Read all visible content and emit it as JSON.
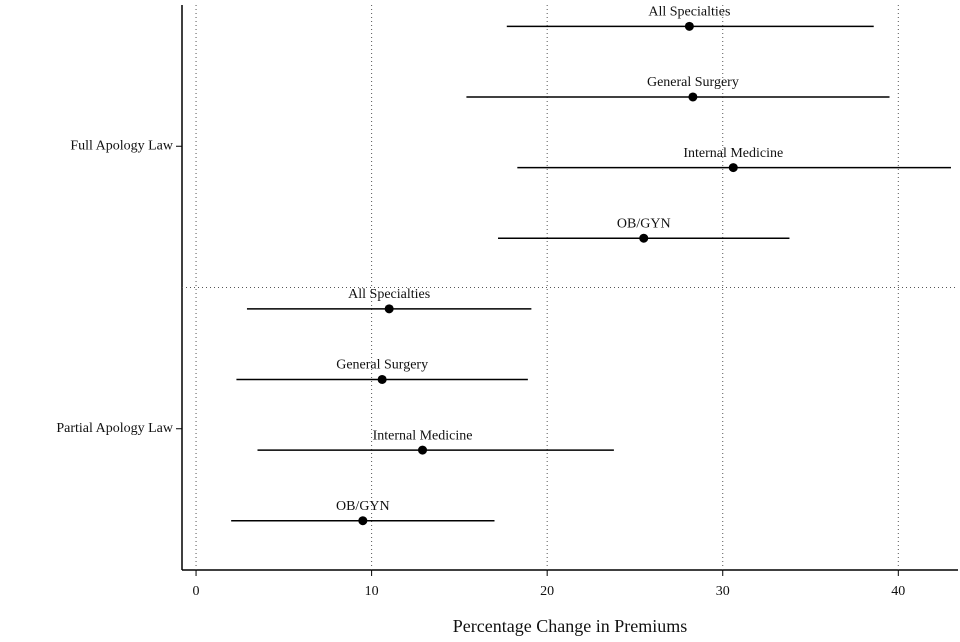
{
  "chart_data": {
    "type": "dot-interval",
    "x_label": "Percentage Change in Premiums",
    "xlim": [
      -0.8,
      43.4
    ],
    "xticks": [
      0,
      10,
      20,
      30,
      40
    ],
    "grid": true,
    "color": "#000000",
    "groups": [
      {
        "name": "Full Apology Law",
        "categories": [
          "All Specialties",
          "General Surgery",
          "Internal Medicine",
          "OB/GYN"
        ],
        "values": [
          28.1,
          28.3,
          30.6,
          25.5
        ],
        "ci_low": [
          17.7,
          15.4,
          18.3,
          17.2
        ],
        "ci_high": [
          38.6,
          39.5,
          43.0,
          33.8
        ]
      },
      {
        "name": "Partial Apology Law",
        "categories": [
          "All Specialties",
          "General Surgery",
          "Internal Medicine",
          "OB/GYN"
        ],
        "values": [
          11.0,
          10.6,
          12.9,
          9.5
        ],
        "ci_low": [
          2.9,
          2.3,
          3.5,
          2.0
        ],
        "ci_high": [
          19.1,
          18.9,
          23.8,
          17.0
        ]
      }
    ]
  }
}
